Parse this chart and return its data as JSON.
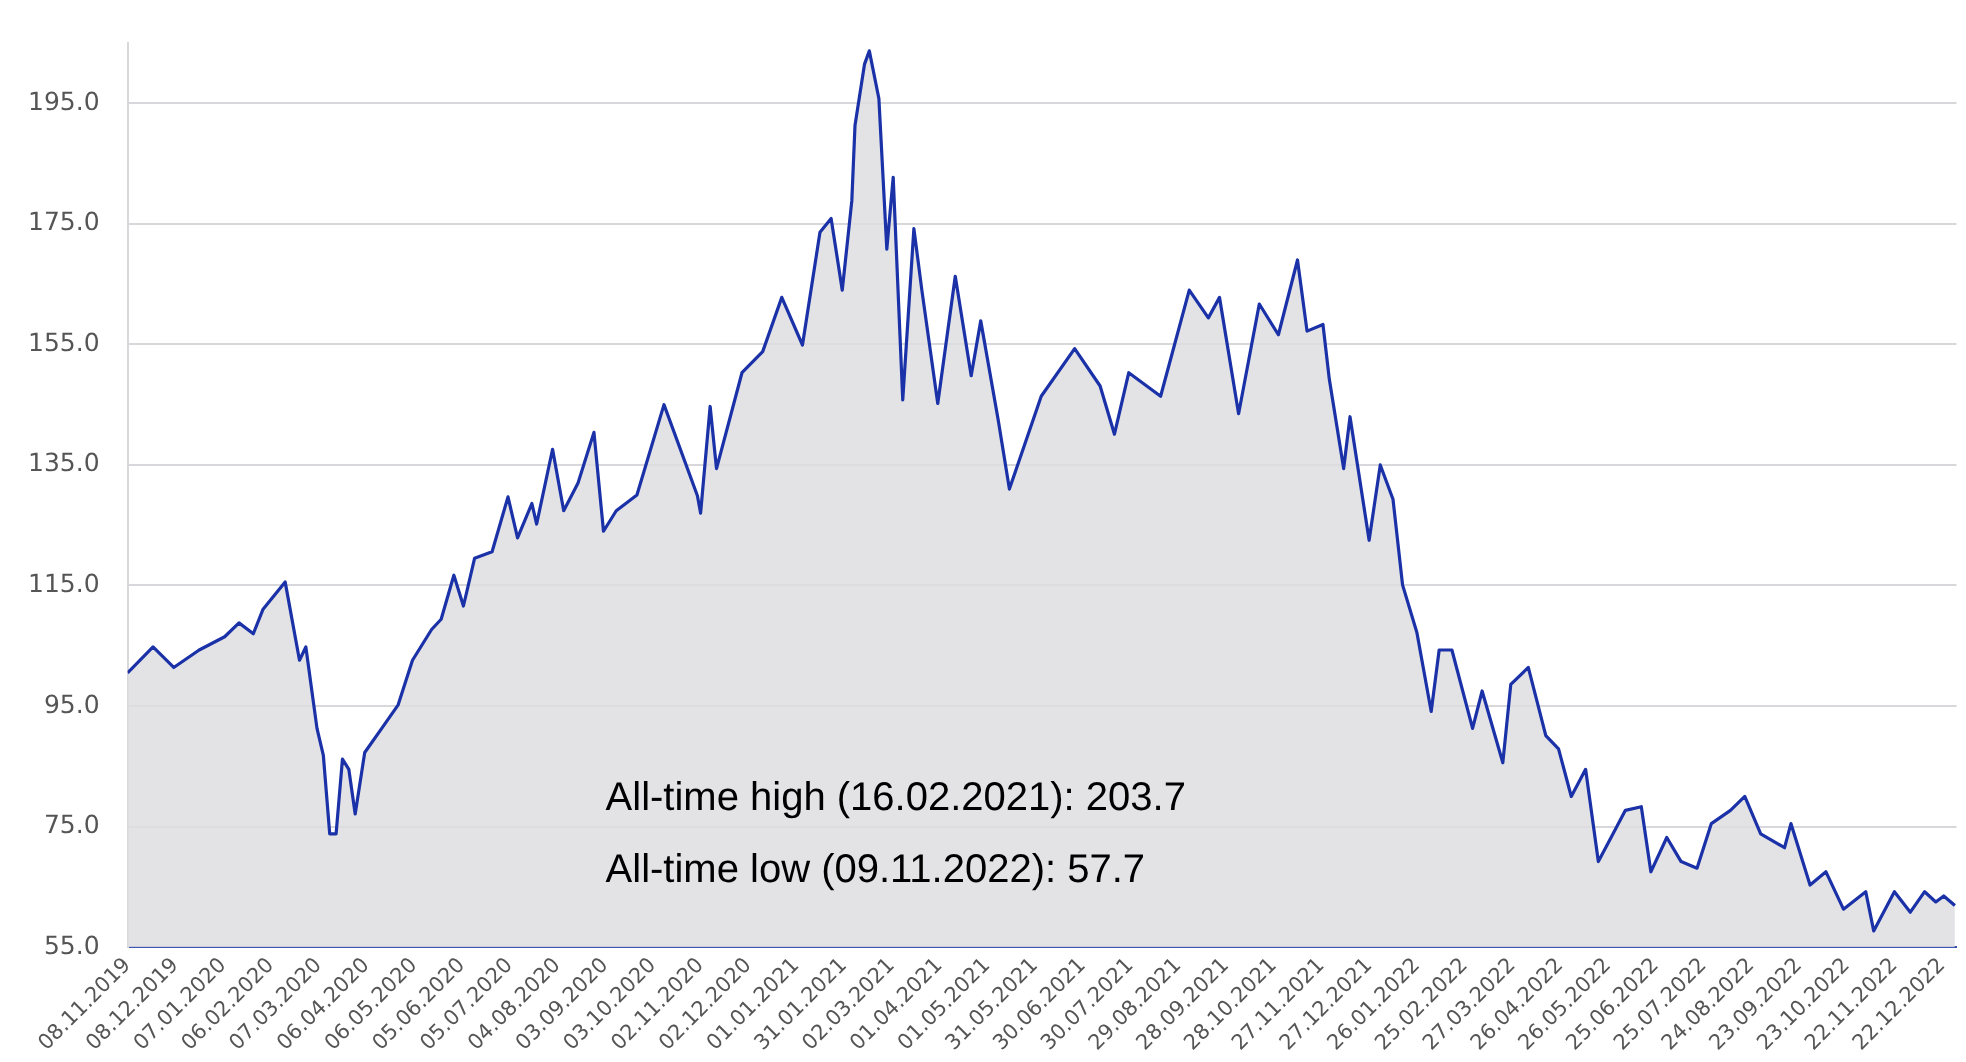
{
  "chart_data": {
    "type": "area",
    "annotations": [
      "All-time high (16.02.2021): 203.7",
      "All-time low (09.11.2022): 57.7"
    ],
    "x": [
      "2019-11-08",
      "2019-11-24",
      "2019-12-07",
      "2019-12-23",
      "2020-01-08",
      "2020-01-17",
      "2020-01-26",
      "2020-02-01",
      "2020-02-15",
      "2020-02-24",
      "2020-02-28",
      "2020-03-06",
      "2020-03-10",
      "2020-03-14",
      "2020-03-18",
      "2020-03-22",
      "2020-03-26",
      "2020-03-30",
      "2020-04-05",
      "2020-04-17",
      "2020-04-26",
      "2020-05-05",
      "2020-05-17",
      "2020-05-23",
      "2020-05-31",
      "2020-06-06",
      "2020-06-13",
      "2020-06-24",
      "2020-07-04",
      "2020-07-10",
      "2020-07-19",
      "2020-07-22",
      "2020-08-01",
      "2020-08-08",
      "2020-08-17",
      "2020-08-27",
      "2020-09-02",
      "2020-09-10",
      "2020-09-23",
      "2020-10-10",
      "2020-10-31",
      "2020-11-02",
      "2020-11-08",
      "2020-11-12",
      "2020-11-28",
      "2020-12-11",
      "2020-12-23",
      "2021-01-05",
      "2021-01-16",
      "2021-01-23",
      "2021-01-30",
      "2021-02-05",
      "2021-02-07",
      "2021-02-13",
      "2021-02-16",
      "2021-02-22",
      "2021-02-27",
      "2021-03-03",
      "2021-03-09",
      "2021-03-16",
      "2021-03-21",
      "2021-03-31",
      "2021-04-11",
      "2021-04-21",
      "2021-04-27",
      "2021-05-08",
      "2021-05-15",
      "2021-05-21",
      "2021-06-04",
      "2021-06-25",
      "2021-07-11",
      "2021-07-20",
      "2021-07-29",
      "2021-08-18",
      "2021-09-05",
      "2021-09-17",
      "2021-09-24",
      "2021-10-06",
      "2021-10-19",
      "2021-10-31",
      "2021-11-12",
      "2021-11-18",
      "2021-11-28",
      "2021-12-02",
      "2021-12-11",
      "2021-12-15",
      "2021-12-27",
      "2022-01-03",
      "2022-01-11",
      "2022-01-17",
      "2022-01-26",
      "2022-02-04",
      "2022-02-09",
      "2022-02-17",
      "2022-03-02",
      "2022-03-08",
      "2022-03-21",
      "2022-03-26",
      "2022-04-06",
      "2022-04-17",
      "2022-04-25",
      "2022-05-03",
      "2022-05-12",
      "2022-05-20",
      "2022-05-28",
      "2022-06-06",
      "2022-06-16",
      "2022-06-22",
      "2022-07-02",
      "2022-07-11",
      "2022-07-21",
      "2022-07-30",
      "2022-08-11",
      "2022-08-20",
      "2022-08-30",
      "2022-09-14",
      "2022-09-18",
      "2022-09-30",
      "2022-10-10",
      "2022-10-21",
      "2022-11-04",
      "2022-11-09",
      "2022-11-22",
      "2022-12-02",
      "2022-12-11",
      "2022-12-18",
      "2022-12-23",
      "2022-12-30"
    ],
    "series": [
      {
        "color": "#1a31a8",
        "values": [
          100.5,
          104.8,
          101.4,
          104.3,
          106.5,
          108.8,
          107,
          111,
          115.6,
          102.6,
          104.8,
          91.3,
          86.8,
          73.8,
          73.8,
          86.2,
          84.5,
          77.1,
          87.3,
          91.8,
          95.2,
          102.6,
          107.7,
          109.4,
          116.7,
          111.6,
          119.5,
          120.6,
          129.7,
          122.9,
          128.6,
          125.2,
          137.6,
          127.4,
          132,
          140.4,
          124,
          127.4,
          130,
          145,
          129.9,
          127,
          144.7,
          134.4,
          150.3,
          153.8,
          162.8,
          154.9,
          173.6,
          175.9,
          164,
          178.8,
          191.3,
          201.5,
          203.7,
          195.8,
          170.8,
          182.7,
          145.8,
          174.2,
          164,
          145.2,
          166.3,
          149.8,
          158.9,
          142.4,
          131,
          135.6,
          146.4,
          154.3,
          148.1,
          140.1,
          150.3,
          146.4,
          164,
          159.4,
          162.8,
          143.5,
          161.7,
          156.6,
          169,
          157.2,
          158.3,
          149.2,
          134.4,
          143,
          122.5,
          135,
          129.3,
          115.1,
          107.2,
          94.1,
          104.3,
          104.3,
          91.3,
          97.5,
          85.6,
          98.6,
          101.4,
          90.1,
          87.9,
          80,
          84.5,
          69.2,
          73.2,
          77.7,
          78.3,
          67.5,
          73.2,
          69.2,
          68.1,
          75.5,
          77.7,
          80,
          73.8,
          71.5,
          75.5,
          65.3,
          67.5,
          61.3,
          64.2,
          57.7,
          64.2,
          60.8,
          64.2,
          62.5,
          63.5,
          61.9
        ]
      }
    ],
    "xlim": [
      "2019-11-08",
      "2022-12-31"
    ],
    "xticks": [
      {
        "value": "2019-11-08",
        "label": "08.11.2019"
      },
      {
        "value": "2019-12-08",
        "label": "08.12.2019"
      },
      {
        "value": "2020-01-07",
        "label": "07.01.2020"
      },
      {
        "value": "2020-02-06",
        "label": "06.02.2020"
      },
      {
        "value": "2020-03-07",
        "label": "07.03.2020"
      },
      {
        "value": "2020-04-06",
        "label": "06.04.2020"
      },
      {
        "value": "2020-05-06",
        "label": "06.05.2020"
      },
      {
        "value": "2020-06-05",
        "label": "05.06.2020"
      },
      {
        "value": "2020-07-05",
        "label": "05.07.2020"
      },
      {
        "value": "2020-08-04",
        "label": "04.08.2020"
      },
      {
        "value": "2020-09-03",
        "label": "03.09.2020"
      },
      {
        "value": "2020-10-03",
        "label": "03.10.2020"
      },
      {
        "value": "2020-11-02",
        "label": "02.11.2020"
      },
      {
        "value": "2020-12-02",
        "label": "02.12.2020"
      },
      {
        "value": "2021-01-01",
        "label": "01.01.2021"
      },
      {
        "value": "2021-01-31",
        "label": "31.01.2021"
      },
      {
        "value": "2021-03-02",
        "label": "02.03.2021"
      },
      {
        "value": "2021-04-01",
        "label": "01.04.2021"
      },
      {
        "value": "2021-05-01",
        "label": "01.05.2021"
      },
      {
        "value": "2021-05-31",
        "label": "31.05.2021"
      },
      {
        "value": "2021-06-30",
        "label": "30.06.2021"
      },
      {
        "value": "2021-07-30",
        "label": "30.07.2021"
      },
      {
        "value": "2021-08-29",
        "label": "29.08.2021"
      },
      {
        "value": "2021-09-28",
        "label": "28.09.2021"
      },
      {
        "value": "2021-10-28",
        "label": "28.10.2021"
      },
      {
        "value": "2021-11-27",
        "label": "27.11.2021"
      },
      {
        "value": "2021-12-27",
        "label": "27.12.2021"
      },
      {
        "value": "2022-01-26",
        "label": "26.01.2022"
      },
      {
        "value": "2022-02-25",
        "label": "25.02.2022"
      },
      {
        "value": "2022-03-27",
        "label": "27.03.2022"
      },
      {
        "value": "2022-04-26",
        "label": "26.04.2022"
      },
      {
        "value": "2022-05-26",
        "label": "26.05.2022"
      },
      {
        "value": "2022-06-25",
        "label": "25.06.2022"
      },
      {
        "value": "2022-07-25",
        "label": "25.07.2022"
      },
      {
        "value": "2022-08-24",
        "label": "24.08.2022"
      },
      {
        "value": "2022-09-23",
        "label": "23.09.2022"
      },
      {
        "value": "2022-10-23",
        "label": "23.10.2022"
      },
      {
        "value": "2022-11-22",
        "label": "22.11.2022"
      },
      {
        "value": "2022-12-22",
        "label": "22.12.2022"
      }
    ],
    "ylim": [
      55,
      205
    ],
    "yticks": [
      {
        "value": 55,
        "label": "55.0"
      },
      {
        "value": 75,
        "label": "75.0"
      },
      {
        "value": 95,
        "label": "95.0"
      },
      {
        "value": 115,
        "label": "115.0"
      },
      {
        "value": 135,
        "label": "135.0"
      },
      {
        "value": 155,
        "label": "155.0"
      },
      {
        "value": 175,
        "label": "175.0"
      },
      {
        "value": 195,
        "label": "195.0"
      }
    ],
    "grid": "y",
    "legend": false,
    "marker": "none",
    "line_style": "solid"
  }
}
